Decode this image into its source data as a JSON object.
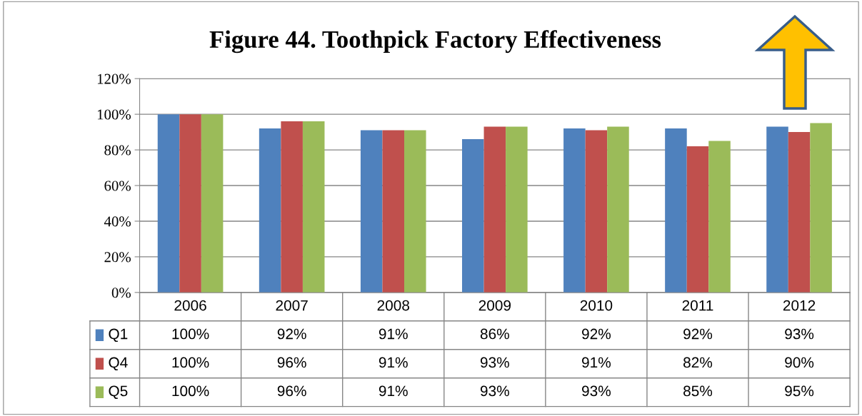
{
  "chart_data": {
    "type": "bar",
    "title": "Figure 44. Toothpick Factory Effectiveness",
    "categories": [
      "2006",
      "2007",
      "2008",
      "2009",
      "2010",
      "2011",
      "2012"
    ],
    "series": [
      {
        "name": "Q1",
        "color": "#4f81bd",
        "values": [
          100,
          92,
          91,
          86,
          92,
          92,
          93
        ],
        "value_labels": [
          "100%",
          "92%",
          "91%",
          "86%",
          "92%",
          "92%",
          "93%"
        ]
      },
      {
        "name": "Q4",
        "color": "#c0504d",
        "values": [
          100,
          96,
          91,
          93,
          91,
          82,
          90
        ],
        "value_labels": [
          "100%",
          "96%",
          "91%",
          "93%",
          "91%",
          "82%",
          "90%"
        ]
      },
      {
        "name": "Q5",
        "color": "#9bbb59",
        "values": [
          100,
          96,
          91,
          93,
          93,
          85,
          95
        ],
        "value_labels": [
          "100%",
          "96%",
          "91%",
          "93%",
          "93%",
          "85%",
          "95%"
        ]
      }
    ],
    "ylim": [
      0,
      120
    ],
    "yticks": [
      {
        "value": 0,
        "label": "0%"
      },
      {
        "value": 20,
        "label": "20%"
      },
      {
        "value": 40,
        "label": "40%"
      },
      {
        "value": 60,
        "label": "60%"
      },
      {
        "value": 80,
        "label": "80%"
      },
      {
        "value": 100,
        "label": "100%"
      },
      {
        "value": 120,
        "label": "120%"
      }
    ],
    "grid": "y",
    "legend": "bottom left"
  }
}
